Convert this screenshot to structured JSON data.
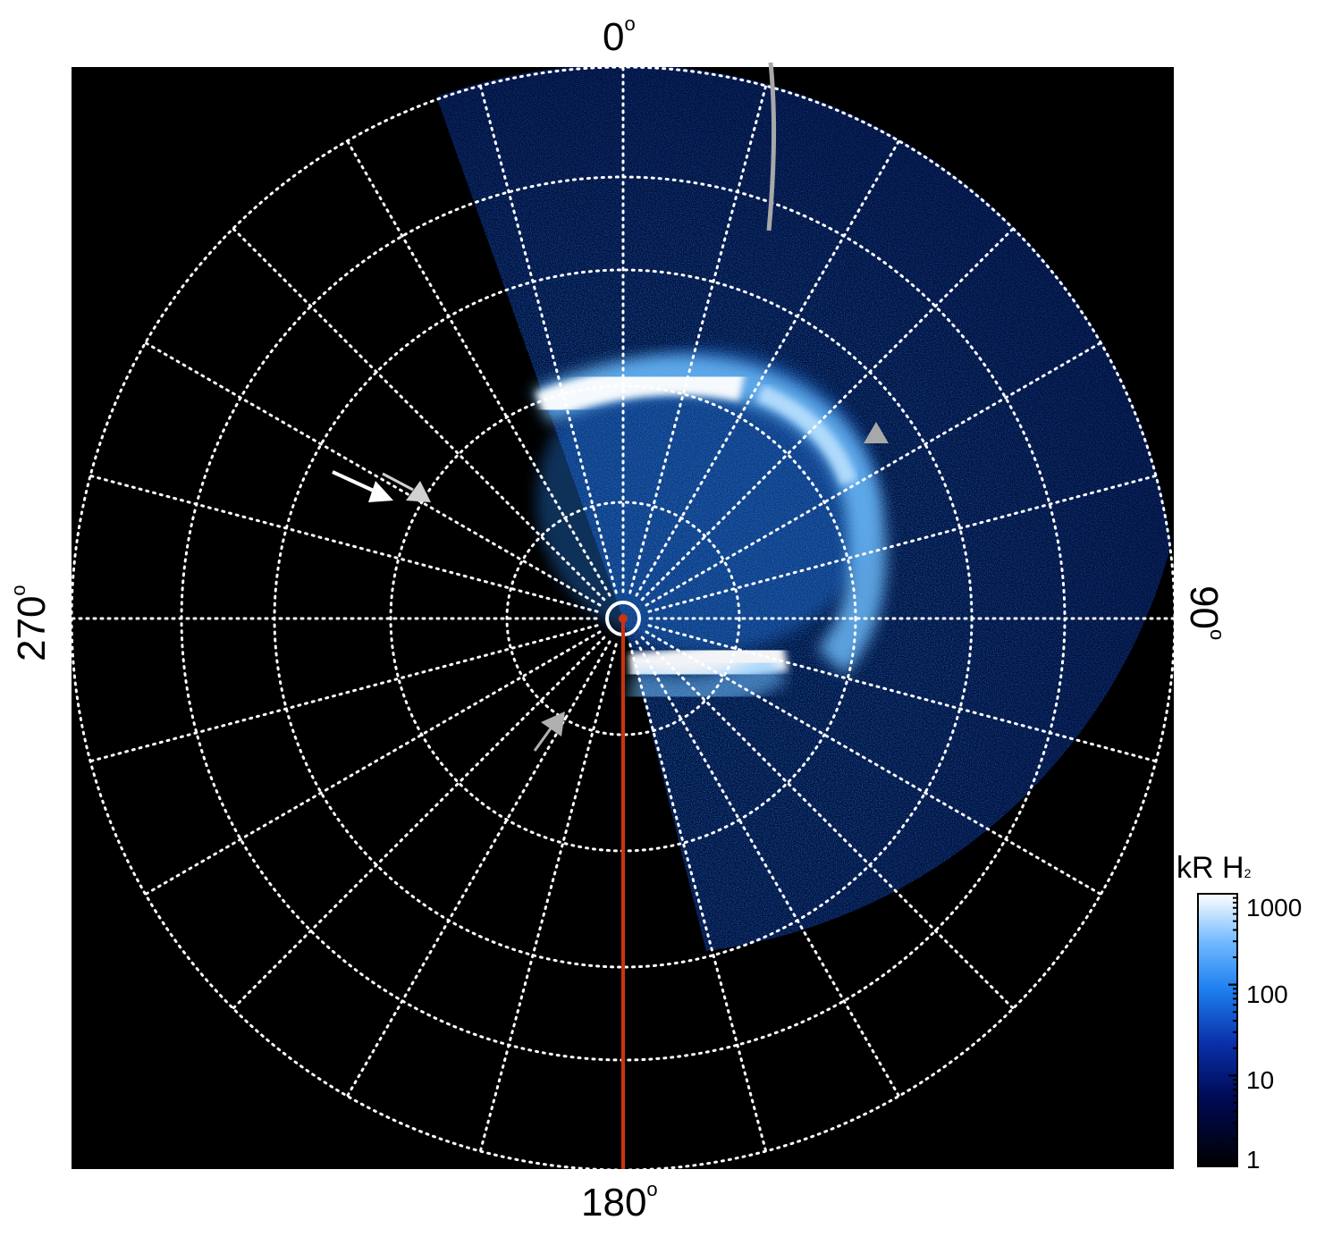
{
  "directions": {
    "top": "0",
    "bottom": "180",
    "left": "270",
    "right": "90",
    "degree_symbol": "o"
  },
  "colorbar": {
    "title_main": "kR H",
    "title_subscript": "2",
    "ticks": [
      "1000",
      "100",
      "10",
      "1"
    ],
    "scale": "log",
    "range": [
      1,
      1000
    ]
  },
  "colors": {
    "background": "#000000",
    "grid": "#ffffff",
    "red_line": "#cc3311",
    "gray_arc": "#a0a0a0",
    "aurora_bright": "#ffffff",
    "aurora_mid": "#1e8cff",
    "aurora_dim": "#0a2a88"
  },
  "markers": [
    "white-arrow",
    "gray-arrow",
    "gray-triangle"
  ]
}
